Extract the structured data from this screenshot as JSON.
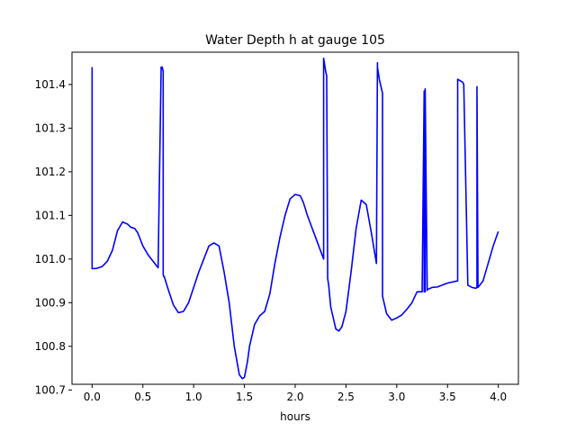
{
  "chart_data": {
    "type": "line",
    "title": "Water Depth h at gauge 105",
    "xlabel": "hours",
    "ylabel": "",
    "xlim": [
      -0.198,
      4.198
    ],
    "ylim": [
      100.713,
      101.474
    ],
    "xticks": [
      0.0,
      0.5,
      1.0,
      1.5,
      2.0,
      2.5,
      3.0,
      3.5,
      4.0
    ],
    "xtick_labels": [
      "0.0",
      "0.5",
      "1.0",
      "1.5",
      "2.0",
      "2.5",
      "3.0",
      "3.5",
      "4.0"
    ],
    "yticks": [
      100.7,
      100.8,
      100.9,
      101.0,
      101.1,
      101.2,
      101.3,
      101.4
    ],
    "ytick_labels": [
      "100.7",
      "100.8",
      "100.9",
      "101.0",
      "101.1",
      "101.2",
      "101.3",
      "101.4"
    ],
    "grid": false,
    "line_color": "#0000ff",
    "series": [
      {
        "x": [
          0.0,
          0.0,
          0.01,
          0.05,
          0.1,
          0.15,
          0.2,
          0.25,
          0.3,
          0.35,
          0.38,
          0.42,
          0.45,
          0.5,
          0.55,
          0.6,
          0.65,
          0.68,
          0.69,
          0.7,
          0.7,
          0.705,
          0.71,
          0.71,
          0.75,
          0.8,
          0.85,
          0.9,
          0.95,
          1.0,
          1.05,
          1.1,
          1.15,
          1.2,
          1.25,
          1.3,
          1.35,
          1.4,
          1.45,
          1.48,
          1.5,
          1.53,
          1.55,
          1.6,
          1.65,
          1.7,
          1.75,
          1.8,
          1.85,
          1.9,
          1.95,
          2.0,
          2.05,
          2.08,
          2.12,
          2.2,
          2.28,
          2.28,
          2.3,
          2.31,
          2.32,
          2.33,
          2.35,
          2.4,
          2.43,
          2.46,
          2.5,
          2.55,
          2.6,
          2.65,
          2.7,
          2.75,
          2.8,
          2.81,
          2.81,
          2.83,
          2.86,
          2.86,
          2.9,
          2.95,
          3.0,
          3.05,
          3.1,
          3.15,
          3.2,
          3.25,
          3.27,
          3.27,
          3.28,
          3.28,
          3.3,
          3.3,
          3.35,
          3.4,
          3.5,
          3.6,
          3.6,
          3.65,
          3.66,
          3.7,
          3.74,
          3.78,
          3.79,
          3.79,
          3.8,
          3.85,
          3.9,
          3.95,
          4.0
        ],
        "y": [
          101.44,
          100.978,
          100.978,
          100.979,
          100.983,
          100.995,
          101.02,
          101.065,
          101.085,
          101.08,
          101.073,
          101.07,
          101.06,
          101.03,
          101.01,
          100.995,
          100.98,
          101.44,
          101.44,
          101.43,
          100.965,
          100.96,
          100.96,
          100.96,
          100.93,
          100.895,
          100.877,
          100.88,
          100.9,
          100.935,
          100.97,
          101.0,
          101.03,
          101.037,
          101.03,
          100.97,
          100.9,
          100.8,
          100.735,
          100.726,
          100.729,
          100.765,
          100.8,
          100.85,
          100.87,
          100.88,
          100.92,
          100.99,
          101.05,
          101.1,
          101.138,
          101.148,
          101.145,
          101.13,
          101.1,
          101.05,
          101.0,
          101.46,
          101.43,
          101.42,
          100.955,
          100.94,
          100.89,
          100.84,
          100.835,
          100.845,
          100.88,
          100.97,
          101.07,
          101.135,
          101.125,
          101.06,
          100.99,
          101.45,
          101.44,
          101.41,
          101.38,
          100.915,
          100.875,
          100.86,
          100.865,
          100.872,
          100.885,
          100.9,
          100.925,
          100.925,
          101.385,
          100.925,
          100.925,
          101.39,
          100.928,
          100.93,
          100.935,
          100.936,
          100.945,
          100.95,
          101.412,
          101.405,
          101.4,
          100.94,
          100.935,
          100.933,
          100.935,
          101.395,
          100.935,
          100.95,
          100.99,
          101.03,
          101.063
        ]
      }
    ]
  }
}
